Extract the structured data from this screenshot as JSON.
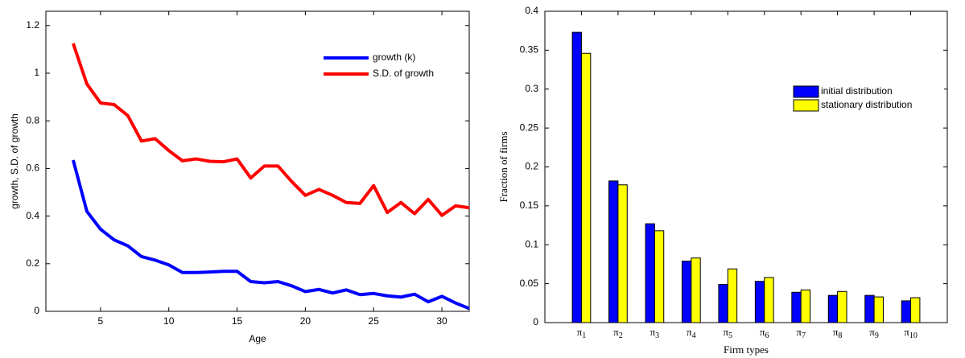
{
  "chart_data": [
    {
      "type": "line",
      "x_label": "Age",
      "y_label": "growth, S.D. of growth",
      "x": [
        3,
        4,
        5,
        6,
        7,
        8,
        9,
        10,
        11,
        12,
        13,
        14,
        15,
        16,
        17,
        18,
        19,
        20,
        21,
        22,
        23,
        24,
        25,
        26,
        27,
        28,
        29,
        30,
        31,
        32
      ],
      "series": [
        {
          "name": "growth (k)",
          "color": "#0000ff",
          "values": [
            0.635,
            0.42,
            0.345,
            0.3,
            0.275,
            0.23,
            0.215,
            0.195,
            0.163,
            0.163,
            0.165,
            0.168,
            0.168,
            0.125,
            0.12,
            0.125,
            0.107,
            0.083,
            0.092,
            0.077,
            0.09,
            0.07,
            0.075,
            0.065,
            0.06,
            0.072,
            0.04,
            0.063,
            0.035,
            0.012
          ]
        },
        {
          "name": "S.D. of growth",
          "color": "#ff0000",
          "values": [
            1.125,
            0.955,
            0.875,
            0.868,
            0.822,
            0.715,
            0.725,
            0.675,
            0.632,
            0.64,
            0.63,
            0.628,
            0.64,
            0.56,
            0.61,
            0.61,
            0.545,
            0.487,
            0.512,
            0.487,
            0.457,
            0.453,
            0.528,
            0.415,
            0.457,
            0.41,
            0.47,
            0.403,
            0.443,
            0.435
          ]
        }
      ],
      "xlim": [
        1,
        32
      ],
      "xticks": [
        5,
        10,
        15,
        20,
        25,
        30
      ],
      "ylim": [
        0,
        1.26
      ],
      "yticks": [
        0,
        0.2,
        0.4,
        0.6,
        0.8,
        1,
        1.2
      ],
      "legend": "upper right"
    },
    {
      "type": "bar",
      "x_label": "Firm types",
      "y_label": "Fraction of firms",
      "categories": [
        "π1",
        "π2",
        "π3",
        "π4",
        "π5",
        "π6",
        "π7",
        "π8",
        "π9",
        "π10"
      ],
      "series": [
        {
          "name": "initial distribution",
          "color": "#0000ff",
          "values": [
            0.373,
            0.182,
            0.127,
            0.079,
            0.049,
            0.053,
            0.039,
            0.035,
            0.035,
            0.028
          ]
        },
        {
          "name": "stationary distribution",
          "color": "#ffff00",
          "values": [
            0.346,
            0.177,
            0.118,
            0.083,
            0.069,
            0.058,
            0.042,
            0.04,
            0.033,
            0.032
          ]
        }
      ],
      "ylim": [
        0,
        0.4
      ],
      "yticks": [
        0,
        0.05,
        0.1,
        0.15,
        0.2,
        0.25,
        0.3,
        0.35,
        0.4
      ],
      "legend": "upper right"
    }
  ]
}
